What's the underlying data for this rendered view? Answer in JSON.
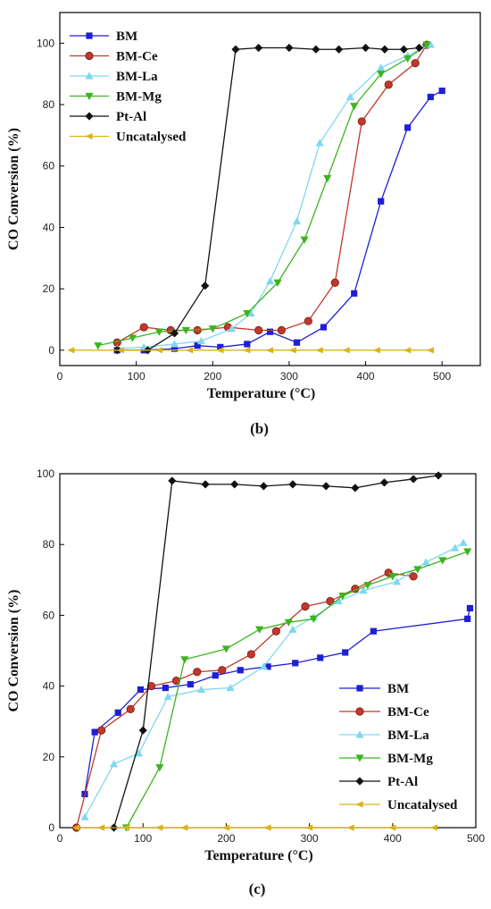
{
  "chart_data": [
    {
      "type": "line",
      "caption": "(b)",
      "xlabel": "Temperature (°C)",
      "ylabel": "CO Conversion (%)",
      "xlim": [
        0,
        550
      ],
      "ylim": [
        -5,
        110
      ],
      "xticks": [
        0,
        100,
        200,
        300,
        400,
        500
      ],
      "yticks": [
        0,
        20,
        40,
        60,
        80,
        100
      ],
      "legend_position": "top-left",
      "series": [
        {
          "name": "BM",
          "color": "#1f1fd6",
          "marker": "square",
          "x": [
            75,
            110,
            150,
            180,
            210,
            245,
            275,
            310,
            345,
            385,
            420,
            455,
            485,
            500
          ],
          "y": [
            0,
            0,
            0.5,
            1.5,
            1,
            2,
            6,
            2.5,
            7.5,
            18.5,
            48.5,
            72.5,
            82.5,
            84.5
          ]
        },
        {
          "name": "BM-Ce",
          "color": "#c0392b",
          "marker": "circle",
          "x": [
            75,
            110,
            145,
            180,
            220,
            260,
            290,
            325,
            360,
            395,
            430,
            465,
            480
          ],
          "y": [
            2.5,
            7.5,
            6.5,
            6.5,
            7.5,
            6.5,
            6.5,
            9.5,
            22,
            74.5,
            86.5,
            93.5,
            99.5
          ]
        },
        {
          "name": "BM-La",
          "color": "#80d8f0",
          "marker": "triangle-up",
          "x": [
            75,
            110,
            150,
            185,
            225,
            250,
            275,
            310,
            340,
            380,
            420,
            455,
            485
          ],
          "y": [
            0.5,
            1,
            2,
            3,
            7,
            12,
            22.5,
            42,
            67.5,
            82.5,
            92,
            96,
            99.5
          ]
        },
        {
          "name": "BM-Mg",
          "color": "#3ab51e",
          "marker": "triangle-down",
          "x": [
            50,
            95,
            130,
            165,
            200,
            245,
            285,
            320,
            350,
            385,
            420,
            455,
            480
          ],
          "y": [
            1.5,
            4,
            6,
            6.5,
            7,
            12,
            22,
            36,
            56,
            79.5,
            90,
            95,
            99.5
          ]
        },
        {
          "name": "Pt-Al",
          "color": "#111111",
          "marker": "diamond",
          "x": [
            75,
            115,
            150,
            190,
            230,
            260,
            300,
            335,
            365,
            400,
            425,
            450,
            470
          ],
          "y": [
            0,
            0,
            5.5,
            21,
            98,
            98.5,
            98.5,
            98,
            98,
            98.5,
            98,
            98,
            98.5
          ]
        },
        {
          "name": "Uncatalysed",
          "color": "#d9b318",
          "marker": "triangle-left",
          "x": [
            15,
            80,
            130,
            170,
            210,
            245,
            275,
            305,
            340,
            375,
            415,
            455,
            485
          ],
          "y": [
            0,
            0,
            0,
            0,
            0,
            0,
            0,
            0,
            0,
            0,
            0,
            0,
            0
          ]
        }
      ]
    },
    {
      "type": "line",
      "caption": "(c)",
      "xlabel": "Temperature (°C)",
      "ylabel": "CO Conversion (%)",
      "xlim": [
        0,
        500
      ],
      "ylim": [
        0,
        100
      ],
      "xticks": [
        0,
        100,
        200,
        300,
        400,
        500
      ],
      "yticks": [
        0,
        20,
        40,
        60,
        80,
        100
      ],
      "legend_position": "bottom-right",
      "series": [
        {
          "name": "BM",
          "color": "#1f1fd6",
          "marker": "square",
          "x": [
            30,
            42,
            70,
            97,
            127,
            157,
            187,
            217,
            250,
            283,
            313,
            343,
            377,
            490,
            493
          ],
          "y": [
            9.5,
            27,
            32.5,
            39,
            39.5,
            40.5,
            43,
            44.5,
            45.5,
            46.5,
            48,
            49.5,
            55.5,
            59,
            62
          ]
        },
        {
          "name": "BM-Ce",
          "color": "#c0392b",
          "marker": "circle",
          "x": [
            20,
            50,
            85,
            110,
            140,
            165,
            195,
            230,
            260,
            295,
            325,
            355,
            395,
            425
          ],
          "y": [
            0,
            27.5,
            33.5,
            40,
            41.5,
            44,
            44.5,
            49,
            55.5,
            62.5,
            64,
            67.5,
            72,
            71
          ]
        },
        {
          "name": "BM-La",
          "color": "#80d8f0",
          "marker": "triangle-up",
          "x": [
            30,
            65,
            95,
            130,
            170,
            205,
            245,
            280,
            305,
            335,
            365,
            405,
            440,
            475,
            485
          ],
          "y": [
            3,
            18,
            21,
            37,
            39,
            39.5,
            45.5,
            56,
            59.5,
            64,
            67,
            69.5,
            75,
            79,
            80.5
          ]
        },
        {
          "name": "BM-Mg",
          "color": "#3ab51e",
          "marker": "triangle-down",
          "x": [
            80,
            120,
            150,
            200,
            240,
            275,
            305,
            340,
            370,
            400,
            430,
            460,
            490
          ],
          "y": [
            0,
            17,
            47.5,
            50.5,
            56,
            58,
            59,
            65.5,
            68.5,
            71,
            73,
            75.5,
            78
          ]
        },
        {
          "name": "Pt-Al",
          "color": "#111111",
          "marker": "diamond",
          "x": [
            65,
            100,
            135,
            175,
            210,
            245,
            280,
            320,
            355,
            390,
            425,
            455
          ],
          "y": [
            0,
            27.5,
            98,
            97,
            97,
            96.5,
            97,
            96.5,
            96,
            97.5,
            98.5,
            99.5
          ]
        },
        {
          "name": "Uncatalysed",
          "color": "#d9b318",
          "marker": "triangle-left",
          "x": [
            20,
            50,
            80,
            120,
            150,
            200,
            250,
            300,
            350,
            400,
            450
          ],
          "y": [
            0,
            0,
            0,
            0,
            0,
            0,
            0,
            0,
            0,
            0,
            0
          ]
        }
      ]
    }
  ]
}
